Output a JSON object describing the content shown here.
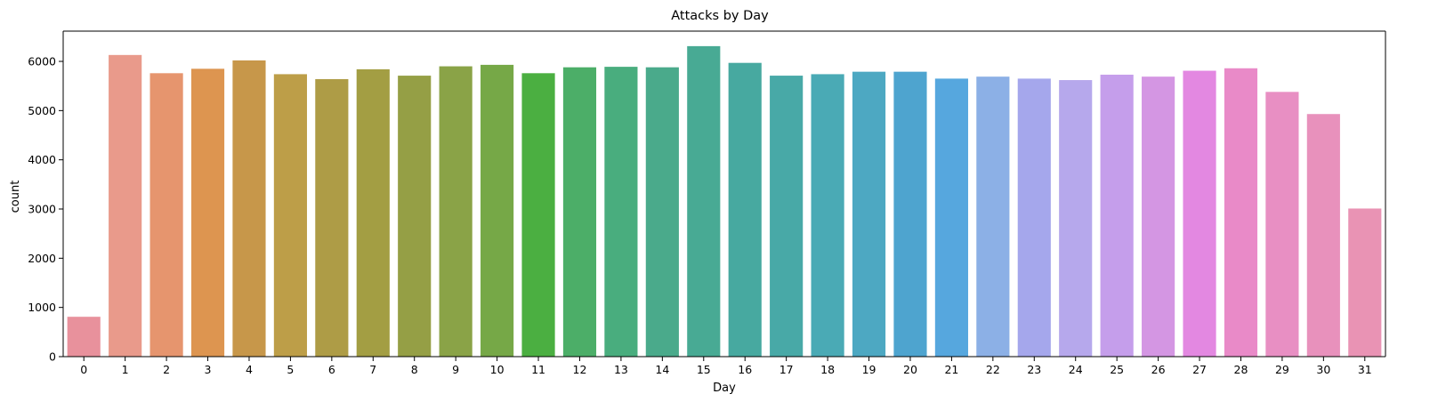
{
  "chart_data": {
    "type": "bar",
    "title": "Attacks by Day",
    "xlabel": "Day",
    "ylabel": "count",
    "categories": [
      "0",
      "1",
      "2",
      "3",
      "4",
      "5",
      "6",
      "7",
      "8",
      "9",
      "10",
      "11",
      "12",
      "13",
      "14",
      "15",
      "16",
      "17",
      "18",
      "19",
      "20",
      "21",
      "22",
      "23",
      "24",
      "25",
      "26",
      "27",
      "28",
      "29",
      "30",
      "31"
    ],
    "values": [
      810,
      6130,
      5760,
      5850,
      6020,
      5740,
      5640,
      5840,
      5710,
      5900,
      5930,
      5760,
      5880,
      5890,
      5880,
      6310,
      5970,
      5710,
      5740,
      5790,
      5790,
      5650,
      5690,
      5650,
      5620,
      5730,
      5690,
      5810,
      5860,
      5380,
      4930,
      3010
    ],
    "colors": [
      "#e8919c",
      "#e99a8b",
      "#e6956e",
      "#dd9550",
      "#c7974a",
      "#bd9e48",
      "#ae9c46",
      "#a39e43",
      "#959f45",
      "#8aa347",
      "#76a847",
      "#4baf41",
      "#4cae68",
      "#49ad7e",
      "#4aaa8b",
      "#48aa94",
      "#47a9a0",
      "#48a9a7",
      "#4aaab5",
      "#4da8c2",
      "#4ea4cf",
      "#56a7de",
      "#8cb0e6",
      "#a5a7ec",
      "#b6a8ec",
      "#c59eeb",
      "#d496e3",
      "#e388e1",
      "#e98ac8",
      "#e88fc3",
      "#e891bc",
      "#e993b4"
    ],
    "yticks": [
      0,
      1000,
      2000,
      3000,
      4000,
      5000,
      6000
    ],
    "ylim": [
      0,
      6615
    ],
    "grid": false,
    "legend": "none"
  }
}
